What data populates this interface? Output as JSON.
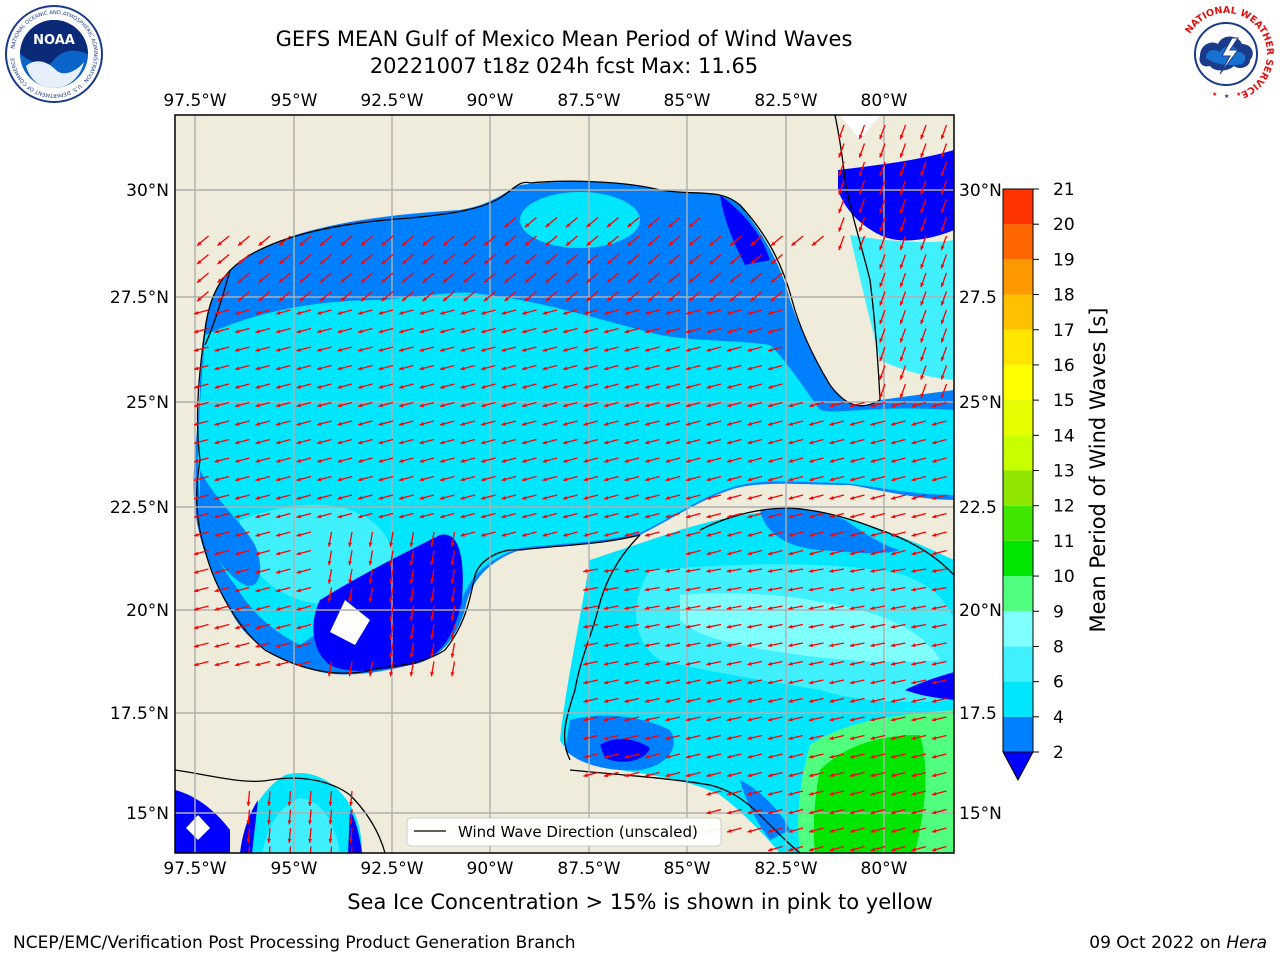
{
  "header": {
    "title_line1": "GEFS MEAN Gulf of Mexico Mean Period of Wind Waves",
    "title_line2": "20221007 t18z 024h fcst   Max: 11.65"
  },
  "logos": {
    "left": "NOAA",
    "left_ring_text": "NATIONAL OCEANIC AND ATMOSPHERIC ADMINISTRATION · U.S. DEPARTMENT OF COMMERCE",
    "right_ring_text": "NATIONAL WEATHER SERVICE"
  },
  "map": {
    "lon_labels": [
      "97.5°W",
      "95°W",
      "92.5°W",
      "90°W",
      "87.5°W",
      "85°W",
      "82.5°W",
      "80°W"
    ],
    "lat_labels_left": [
      "30°N",
      "27.5°N",
      "25°N",
      "22.5°N",
      "20°N",
      "17.5°N",
      "15°N"
    ],
    "lat_labels_right": [
      "30°N",
      "27.5",
      "25°N",
      "22.5",
      "20°N",
      "17.5",
      "15°N"
    ],
    "legend_label": "Wind Wave Direction (unscaled)",
    "vector_color": "#ff0000",
    "land_color": "#efecdc",
    "grid_color": "#b0b0b0"
  },
  "colorbar": {
    "label": "Mean Period of Wind Waves [s]",
    "ticks": [
      "2",
      "4",
      "6",
      "8",
      "9",
      "10",
      "11",
      "12",
      "13",
      "14",
      "15",
      "16",
      "17",
      "18",
      "19",
      "20",
      "21"
    ],
    "colors": [
      "#0080ff",
      "#00e6ff",
      "#40f0ff",
      "#80ffff",
      "#50ff80",
      "#00e600",
      "#40e600",
      "#90e600",
      "#c8ff00",
      "#e6ff00",
      "#ffff00",
      "#ffe600",
      "#ffc000",
      "#ff9900",
      "#ff6600",
      "#ff3300",
      "#ff0000"
    ],
    "extend_color": "#0000ff"
  },
  "footer": {
    "caption": "Sea Ice Concentration > 15% is shown in pink to yellow",
    "credit": "NCEP/EMC/Verification Post Processing Product Generation Branch",
    "date": "09 Oct 2022 on",
    "host": "Hera"
  }
}
